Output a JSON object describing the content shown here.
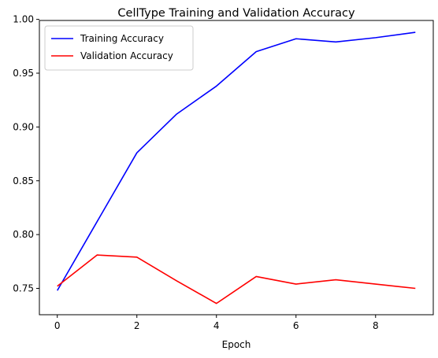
{
  "chart_data": {
    "type": "line",
    "title": "CellType Training and Validation Accuracy",
    "xlabel": "Epoch",
    "ylabel": "",
    "x": [
      0,
      1,
      2,
      3,
      4,
      5,
      6,
      7,
      8,
      9
    ],
    "series": [
      {
        "name": "Training Accuracy",
        "color": "#0000ff",
        "values": [
          0.748,
          0.812,
          0.876,
          0.912,
          0.938,
          0.97,
          0.982,
          0.979,
          0.983,
          0.988
        ]
      },
      {
        "name": "Validation Accuracy",
        "color": "#ff0000",
        "values": [
          0.752,
          0.781,
          0.779,
          0.757,
          0.736,
          0.761,
          0.754,
          0.758,
          0.754,
          0.75
        ]
      }
    ],
    "xlim": [
      -0.45,
      9.45
    ],
    "ylim": [
      0.7255,
      0.999
    ],
    "xticks": [
      0,
      2,
      4,
      6,
      8
    ],
    "xtick_labels": [
      "0",
      "2",
      "4",
      "6",
      "8"
    ],
    "yticks": [
      0.75,
      0.8,
      0.85,
      0.9,
      0.95,
      1.0
    ],
    "ytick_labels": [
      "0.75",
      "0.80",
      "0.85",
      "0.90",
      "0.95",
      "1.00"
    ],
    "grid": false,
    "legend_position": "top-left"
  }
}
